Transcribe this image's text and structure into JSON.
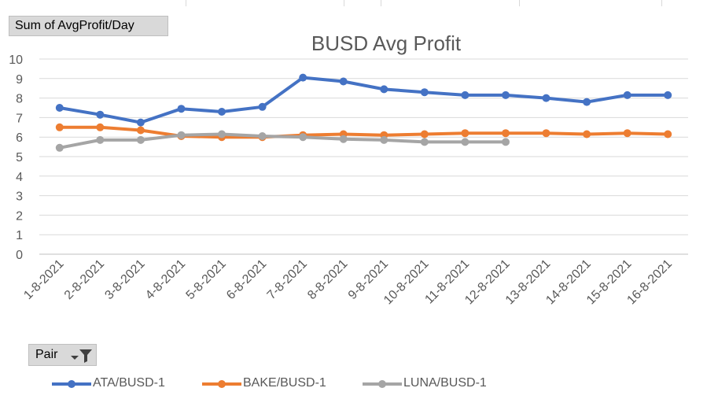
{
  "pivot": {
    "data_field_label": "Sum of AvgProfit/Day",
    "row_field_label": "Pair"
  },
  "icons": {
    "dropdown": "chevron-down-icon",
    "filter": "filter-funnel-icon"
  },
  "chart_data": {
    "type": "line",
    "title": "BUSD Avg Profit",
    "xlabel": "",
    "ylabel": "",
    "ylim": [
      0,
      10
    ],
    "yticks": [
      0,
      1,
      2,
      3,
      4,
      5,
      6,
      7,
      8,
      9,
      10
    ],
    "grid": true,
    "legend_position": "bottom",
    "categories": [
      "1-8-2021",
      "2-8-2021",
      "3-8-2021",
      "4-8-2021",
      "5-8-2021",
      "6-8-2021",
      "7-8-2021",
      "8-8-2021",
      "9-8-2021",
      "10-8-2021",
      "11-8-2021",
      "12-8-2021",
      "13-8-2021",
      "14-8-2021",
      "15-8-2021",
      "16-8-2021"
    ],
    "series": [
      {
        "name": "ATA/BUSD-1",
        "color": "#4472c4",
        "values": [
          7.5,
          7.15,
          6.75,
          7.45,
          7.3,
          7.55,
          9.05,
          8.85,
          8.45,
          8.3,
          8.15,
          8.15,
          8.0,
          7.8,
          8.15,
          8.15
        ]
      },
      {
        "name": "BAKE/BUSD-1",
        "color": "#ed7d31",
        "values": [
          6.5,
          6.5,
          6.35,
          6.05,
          6.0,
          6.0,
          6.1,
          6.15,
          6.1,
          6.15,
          6.2,
          6.2,
          6.2,
          6.15,
          6.2,
          6.15
        ]
      },
      {
        "name": "LUNA/BUSD-1",
        "color": "#a5a5a5",
        "values": [
          5.45,
          5.85,
          5.85,
          6.1,
          6.15,
          6.05,
          6.0,
          5.9,
          5.85,
          5.75,
          5.75,
          5.75,
          null,
          null,
          null,
          null
        ]
      }
    ]
  }
}
